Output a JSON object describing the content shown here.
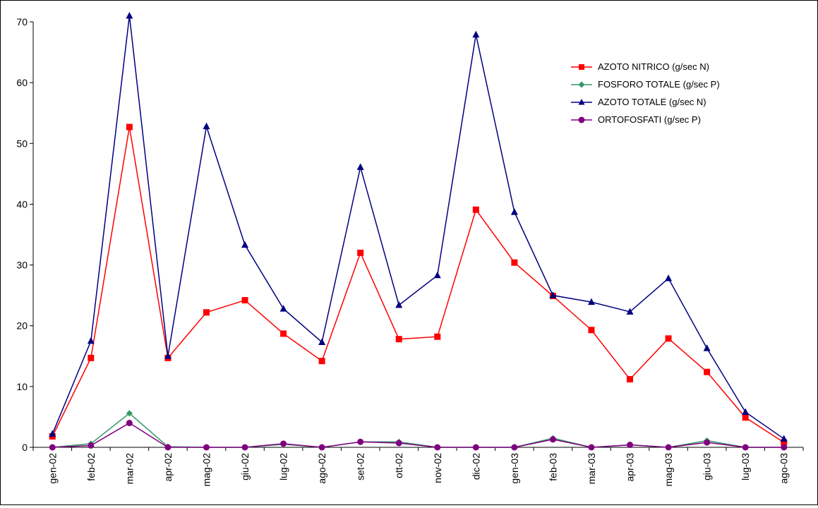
{
  "chart_data": {
    "type": "line",
    "title": "",
    "xlabel": "",
    "ylabel": "",
    "ylim": [
      0,
      70
    ],
    "yticks": [
      0,
      10,
      20,
      30,
      40,
      50,
      60,
      70
    ],
    "grid": false,
    "legend_position": "top-right",
    "categories": [
      "gen-02",
      "feb-02",
      "mar-02",
      "apr-02",
      "mag-02",
      "giu-02",
      "lug-02",
      "ago-02",
      "set-02",
      "ott-02",
      "nov-02",
      "dic-02",
      "gen-03",
      "feb-03",
      "mar-03",
      "apr-03",
      "mag-03",
      "giu-03",
      "lug-03",
      "ago-03"
    ],
    "series": [
      {
        "name": "AZOTO NITRICO (g/sec N)",
        "color": "#ff0000",
        "marker": "square",
        "values": [
          1.8,
          14.7,
          52.7,
          14.7,
          22.2,
          24.2,
          18.7,
          14.2,
          32.0,
          17.8,
          18.2,
          39.1,
          30.4,
          24.9,
          19.3,
          11.2,
          17.9,
          12.4,
          4.9,
          0.8
        ]
      },
      {
        "name": "FOSFORO TOTALE (g/sec P)",
        "color": "#339966",
        "marker": "diamond",
        "values": [
          0.0,
          0.6,
          5.6,
          0.1,
          0.0,
          0.0,
          0.5,
          0.0,
          0.9,
          0.9,
          0.0,
          0.0,
          0.0,
          1.5,
          0.0,
          0.4,
          0.0,
          1.1,
          0.0,
          0.0
        ]
      },
      {
        "name": "AZOTO TOTALE (g/sec N)",
        "color": "#000080",
        "marker": "triangle",
        "values": [
          2.2,
          17.5,
          71.0,
          15.0,
          52.8,
          33.3,
          22.8,
          17.3,
          46.1,
          23.4,
          28.3,
          67.9,
          38.7,
          25.0,
          23.9,
          22.3,
          27.8,
          16.3,
          5.8,
          1.4
        ]
      },
      {
        "name": "ORTOFOSFATI (g/sec P)",
        "color": "#800080",
        "marker": "circle",
        "values": [
          0.0,
          0.3,
          4.0,
          0.0,
          0.0,
          0.0,
          0.6,
          0.0,
          0.9,
          0.7,
          0.0,
          0.0,
          0.0,
          1.3,
          0.0,
          0.4,
          0.0,
          0.8,
          0.0,
          0.0
        ]
      }
    ]
  }
}
